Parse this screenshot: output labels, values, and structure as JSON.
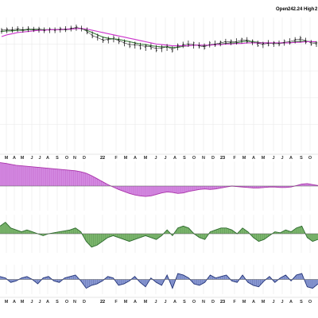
{
  "header": {
    "open_label": "Open",
    "open_value": "242.24",
    "high_label": "High",
    "high_value": "2"
  },
  "chart_data": [
    {
      "type": "line",
      "panel": "price",
      "ylim": [
        0,
        100
      ],
      "grid": true,
      "bars": [
        [
          84,
          90,
          80,
          87
        ],
        [
          85,
          91,
          81,
          88
        ],
        [
          86,
          92,
          82,
          87
        ],
        [
          87,
          93,
          83,
          89
        ],
        [
          87,
          92,
          82,
          86
        ],
        [
          87,
          93,
          83,
          90
        ],
        [
          87,
          92,
          83,
          87
        ],
        [
          87,
          92,
          82,
          89
        ],
        [
          86,
          91,
          81,
          85
        ],
        [
          86,
          91,
          81,
          88
        ],
        [
          86,
          91,
          81,
          86
        ],
        [
          87,
          92,
          82,
          89
        ],
        [
          88,
          93,
          83,
          87
        ],
        [
          89,
          94,
          84,
          90
        ],
        [
          90,
          96,
          85,
          92
        ],
        [
          89,
          94,
          84,
          88
        ],
        [
          85,
          91,
          79,
          82
        ],
        [
          78,
          84,
          72,
          75
        ],
        [
          74,
          80,
          68,
          76
        ],
        [
          70,
          75,
          64,
          68
        ],
        [
          69,
          75,
          63,
          71
        ],
        [
          71,
          77,
          65,
          73
        ],
        [
          69,
          74,
          62,
          66
        ],
        [
          64,
          70,
          58,
          66
        ],
        [
          61,
          67,
          55,
          58
        ],
        [
          60,
          66,
          54,
          63
        ],
        [
          59,
          64,
          52,
          55
        ],
        [
          56,
          62,
          50,
          59
        ],
        [
          58,
          63,
          52,
          54
        ],
        [
          55,
          60,
          48,
          51
        ],
        [
          54,
          60,
          48,
          57
        ],
        [
          56,
          62,
          50,
          58
        ],
        [
          53,
          58,
          47,
          50
        ],
        [
          57,
          63,
          51,
          60
        ],
        [
          60,
          66,
          55,
          62
        ],
        [
          62,
          68,
          57,
          61
        ],
        [
          60,
          66,
          54,
          64
        ],
        [
          59,
          65,
          54,
          57
        ],
        [
          58,
          63,
          52,
          55
        ],
        [
          61,
          67,
          56,
          64
        ],
        [
          62,
          68,
          57,
          60
        ],
        [
          63,
          68,
          58,
          66
        ],
        [
          66,
          71,
          61,
          64
        ],
        [
          65,
          70,
          60,
          68
        ],
        [
          66,
          72,
          61,
          64
        ],
        [
          68,
          73,
          63,
          71
        ],
        [
          68,
          74,
          63,
          66
        ],
        [
          65,
          70,
          60,
          68
        ],
        [
          62,
          68,
          57,
          59
        ],
        [
          61,
          66,
          55,
          63
        ],
        [
          63,
          69,
          58,
          60
        ],
        [
          62,
          67,
          57,
          65
        ],
        [
          63,
          68,
          58,
          61
        ],
        [
          64,
          70,
          59,
          67
        ],
        [
          66,
          72,
          61,
          64
        ],
        [
          68,
          74,
          63,
          70
        ],
        [
          70,
          76,
          65,
          73
        ],
        [
          67,
          73,
          62,
          65
        ],
        [
          64,
          69,
          59,
          61
        ],
        [
          62,
          67,
          57,
          64
        ]
      ],
      "series": [
        {
          "name": "",
          "color": "#000000",
          "values": [
            86,
            87,
            87,
            88,
            87,
            88,
            88,
            88,
            87,
            87,
            87,
            88,
            88,
            89,
            91,
            89,
            84,
            77,
            73,
            69,
            70,
            71,
            68,
            64,
            61,
            61,
            59,
            58,
            57,
            54,
            55,
            57,
            53,
            57,
            60,
            62,
            61,
            59,
            57,
            61,
            62,
            64,
            66,
            66,
            66,
            69,
            69,
            66,
            63,
            62,
            63,
            63,
            64,
            65,
            66,
            69,
            71,
            68,
            64,
            63
          ]
        },
        {
          "name": "",
          "color": "#3a7d3a",
          "values": [
            84,
            85,
            85,
            86,
            86,
            87,
            87,
            87,
            87,
            87,
            87,
            87,
            87,
            88,
            89,
            89,
            86,
            82,
            78,
            74,
            72,
            71,
            70,
            68,
            66,
            64,
            62,
            61,
            59,
            58,
            57,
            57,
            56,
            56,
            58,
            59,
            60,
            60,
            59,
            60,
            61,
            62,
            63,
            64,
            64,
            66,
            67,
            66,
            65,
            64,
            64,
            63,
            63,
            64,
            64,
            66,
            67,
            67,
            66,
            65
          ]
        },
        {
          "name": "",
          "color": "#cc33cc",
          "values": [
            75,
            78,
            80,
            82,
            83,
            84,
            85,
            86,
            86,
            87,
            87,
            87,
            88,
            88,
            89,
            89,
            88,
            86,
            84,
            82,
            80,
            78,
            76,
            74,
            72,
            70,
            68,
            66,
            64,
            62,
            61,
            60,
            59,
            59,
            59,
            59,
            60,
            60,
            60,
            60,
            61,
            61,
            62,
            62,
            63,
            63,
            64,
            64,
            64,
            64,
            64,
            64,
            64,
            64,
            64,
            65,
            65,
            66,
            66,
            66
          ]
        }
      ]
    },
    {
      "type": "bar",
      "panel": "indicator-1",
      "color": "#cc77dd",
      "line_color": "#aa33aa",
      "values": [
        95,
        92,
        88,
        84,
        82,
        80,
        78,
        76,
        74,
        72,
        70,
        68,
        66,
        64,
        62,
        58,
        52,
        42,
        30,
        18,
        6,
        -4,
        -14,
        -22,
        -30,
        -36,
        -40,
        -42,
        -40,
        -34,
        -28,
        -24,
        -26,
        -30,
        -28,
        -22,
        -18,
        -14,
        -12,
        -14,
        -12,
        -8,
        -4,
        0,
        -2,
        -4,
        -6,
        -8,
        -8,
        -6,
        -4,
        -4,
        -6,
        -6,
        -4,
        2,
        8,
        10,
        6,
        2
      ],
      "ylim": [
        -100,
        100
      ]
    },
    {
      "type": "bar",
      "panel": "indicator-2",
      "color": "#66aa55",
      "line_color": "#2e6b2e",
      "values": [
        40,
        60,
        30,
        20,
        10,
        20,
        10,
        0,
        -10,
        0,
        5,
        10,
        15,
        20,
        30,
        10,
        -40,
        -70,
        -60,
        -40,
        -20,
        -10,
        -20,
        -30,
        -40,
        -30,
        -20,
        -10,
        -20,
        -30,
        -10,
        20,
        -10,
        30,
        40,
        30,
        0,
        -20,
        -30,
        10,
        20,
        30,
        30,
        20,
        0,
        30,
        10,
        -20,
        -40,
        -30,
        -10,
        10,
        5,
        20,
        10,
        30,
        40,
        -20,
        -40,
        -30
      ],
      "ylim": [
        -100,
        100
      ]
    },
    {
      "type": "bar",
      "panel": "indicator-3",
      "color": "#7788cc",
      "line_color": "#223377",
      "values": [
        20,
        10,
        -20,
        -10,
        10,
        20,
        0,
        -30,
        10,
        20,
        -10,
        -20,
        10,
        20,
        30,
        -10,
        -60,
        -40,
        -30,
        -10,
        20,
        10,
        -40,
        -30,
        -10,
        20,
        -20,
        -50,
        10,
        -20,
        -40,
        30,
        -60,
        40,
        30,
        10,
        -30,
        -40,
        -20,
        30,
        10,
        20,
        30,
        -10,
        -20,
        30,
        -20,
        -40,
        -50,
        -10,
        20,
        -20,
        10,
        30,
        -10,
        30,
        40,
        -50,
        -60,
        -30
      ],
      "ylim": [
        -100,
        100
      ]
    }
  ],
  "x_axis": {
    "ticks": [
      {
        "label": "M",
        "pos": 0.02,
        "year": false
      },
      {
        "label": "A",
        "pos": 0.045,
        "year": false
      },
      {
        "label": "M",
        "pos": 0.07,
        "year": false
      },
      {
        "label": "J",
        "pos": 0.1,
        "year": false
      },
      {
        "label": "J",
        "pos": 0.125,
        "year": false
      },
      {
        "label": "A",
        "pos": 0.15,
        "year": false
      },
      {
        "label": "S",
        "pos": 0.18,
        "year": false
      },
      {
        "label": "O",
        "pos": 0.21,
        "year": false
      },
      {
        "label": "N",
        "pos": 0.235,
        "year": false
      },
      {
        "label": "D",
        "pos": 0.265,
        "year": false
      },
      {
        "label": "22",
        "pos": 0.3225,
        "year": true
      },
      {
        "label": "F",
        "pos": 0.365,
        "year": false
      },
      {
        "label": "M",
        "pos": 0.395,
        "year": false
      },
      {
        "label": "A",
        "pos": 0.425,
        "year": false
      },
      {
        "label": "M",
        "pos": 0.4575,
        "year": false
      },
      {
        "label": "J",
        "pos": 0.49,
        "year": false
      },
      {
        "label": "J",
        "pos": 0.52,
        "year": false
      },
      {
        "label": "A",
        "pos": 0.55,
        "year": false
      },
      {
        "label": "S",
        "pos": 0.58,
        "year": false
      },
      {
        "label": "O",
        "pos": 0.61,
        "year": false
      },
      {
        "label": "N",
        "pos": 0.64,
        "year": false
      },
      {
        "label": "D",
        "pos": 0.67,
        "year": false
      },
      {
        "label": "23",
        "pos": 0.7,
        "year": true
      },
      {
        "label": "F",
        "pos": 0.7375,
        "year": false
      },
      {
        "label": "M",
        "pos": 0.7675,
        "year": false
      },
      {
        "label": "A",
        "pos": 0.7975,
        "year": false
      },
      {
        "label": "M",
        "pos": 0.8275,
        "year": false
      },
      {
        "label": "J",
        "pos": 0.86,
        "year": false
      },
      {
        "label": "J",
        "pos": 0.8875,
        "year": false
      },
      {
        "label": "A",
        "pos": 0.915,
        "year": false
      },
      {
        "label": "S",
        "pos": 0.9475,
        "year": false
      },
      {
        "label": "O",
        "pos": 0.975,
        "year": false
      }
    ]
  }
}
